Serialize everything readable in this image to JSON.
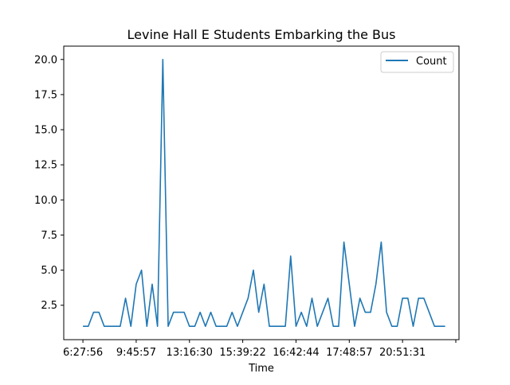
{
  "chart_data": {
    "type": "line",
    "title": "Levine Hall E Students Embarking the Bus",
    "xlabel": "Time",
    "ylabel": "",
    "x_tick_labels": [
      "6:27:56",
      "9:45:57",
      "13:16:30",
      "15:39:22",
      "16:42:44",
      "17:48:57",
      "20:51:31",
      ""
    ],
    "x_tick_index": [
      0,
      10,
      20,
      30,
      40,
      50,
      60,
      70
    ],
    "y_ticks": [
      2.5,
      5.0,
      7.5,
      10.0,
      12.5,
      15.0,
      17.5,
      20.0
    ],
    "y_tick_labels": [
      "2.5",
      "5.0",
      "7.5",
      "10.0",
      "12.5",
      "15.0",
      "17.5",
      "20.0"
    ],
    "ylim": [
      0.05,
      20.95
    ],
    "xlim": [
      -3.6,
      70.6
    ],
    "grid": false,
    "legend_position": "top-right",
    "series": [
      {
        "name": "Count",
        "color": "#1f77b4",
        "values": [
          1,
          1,
          2,
          2,
          1,
          1,
          1,
          1,
          3,
          1,
          4,
          5,
          1,
          4,
          1,
          20,
          1,
          2,
          2,
          2,
          1,
          1,
          2,
          1,
          2,
          1,
          1,
          1,
          2,
          1,
          2,
          3,
          5,
          2,
          4,
          1,
          1,
          1,
          1,
          6,
          1,
          2,
          1,
          3,
          1,
          2,
          3,
          1,
          1,
          7,
          4,
          1,
          3,
          2,
          2,
          4,
          7,
          2,
          1,
          1,
          3,
          3,
          1,
          3,
          3,
          2,
          1,
          1,
          1
        ]
      }
    ]
  }
}
